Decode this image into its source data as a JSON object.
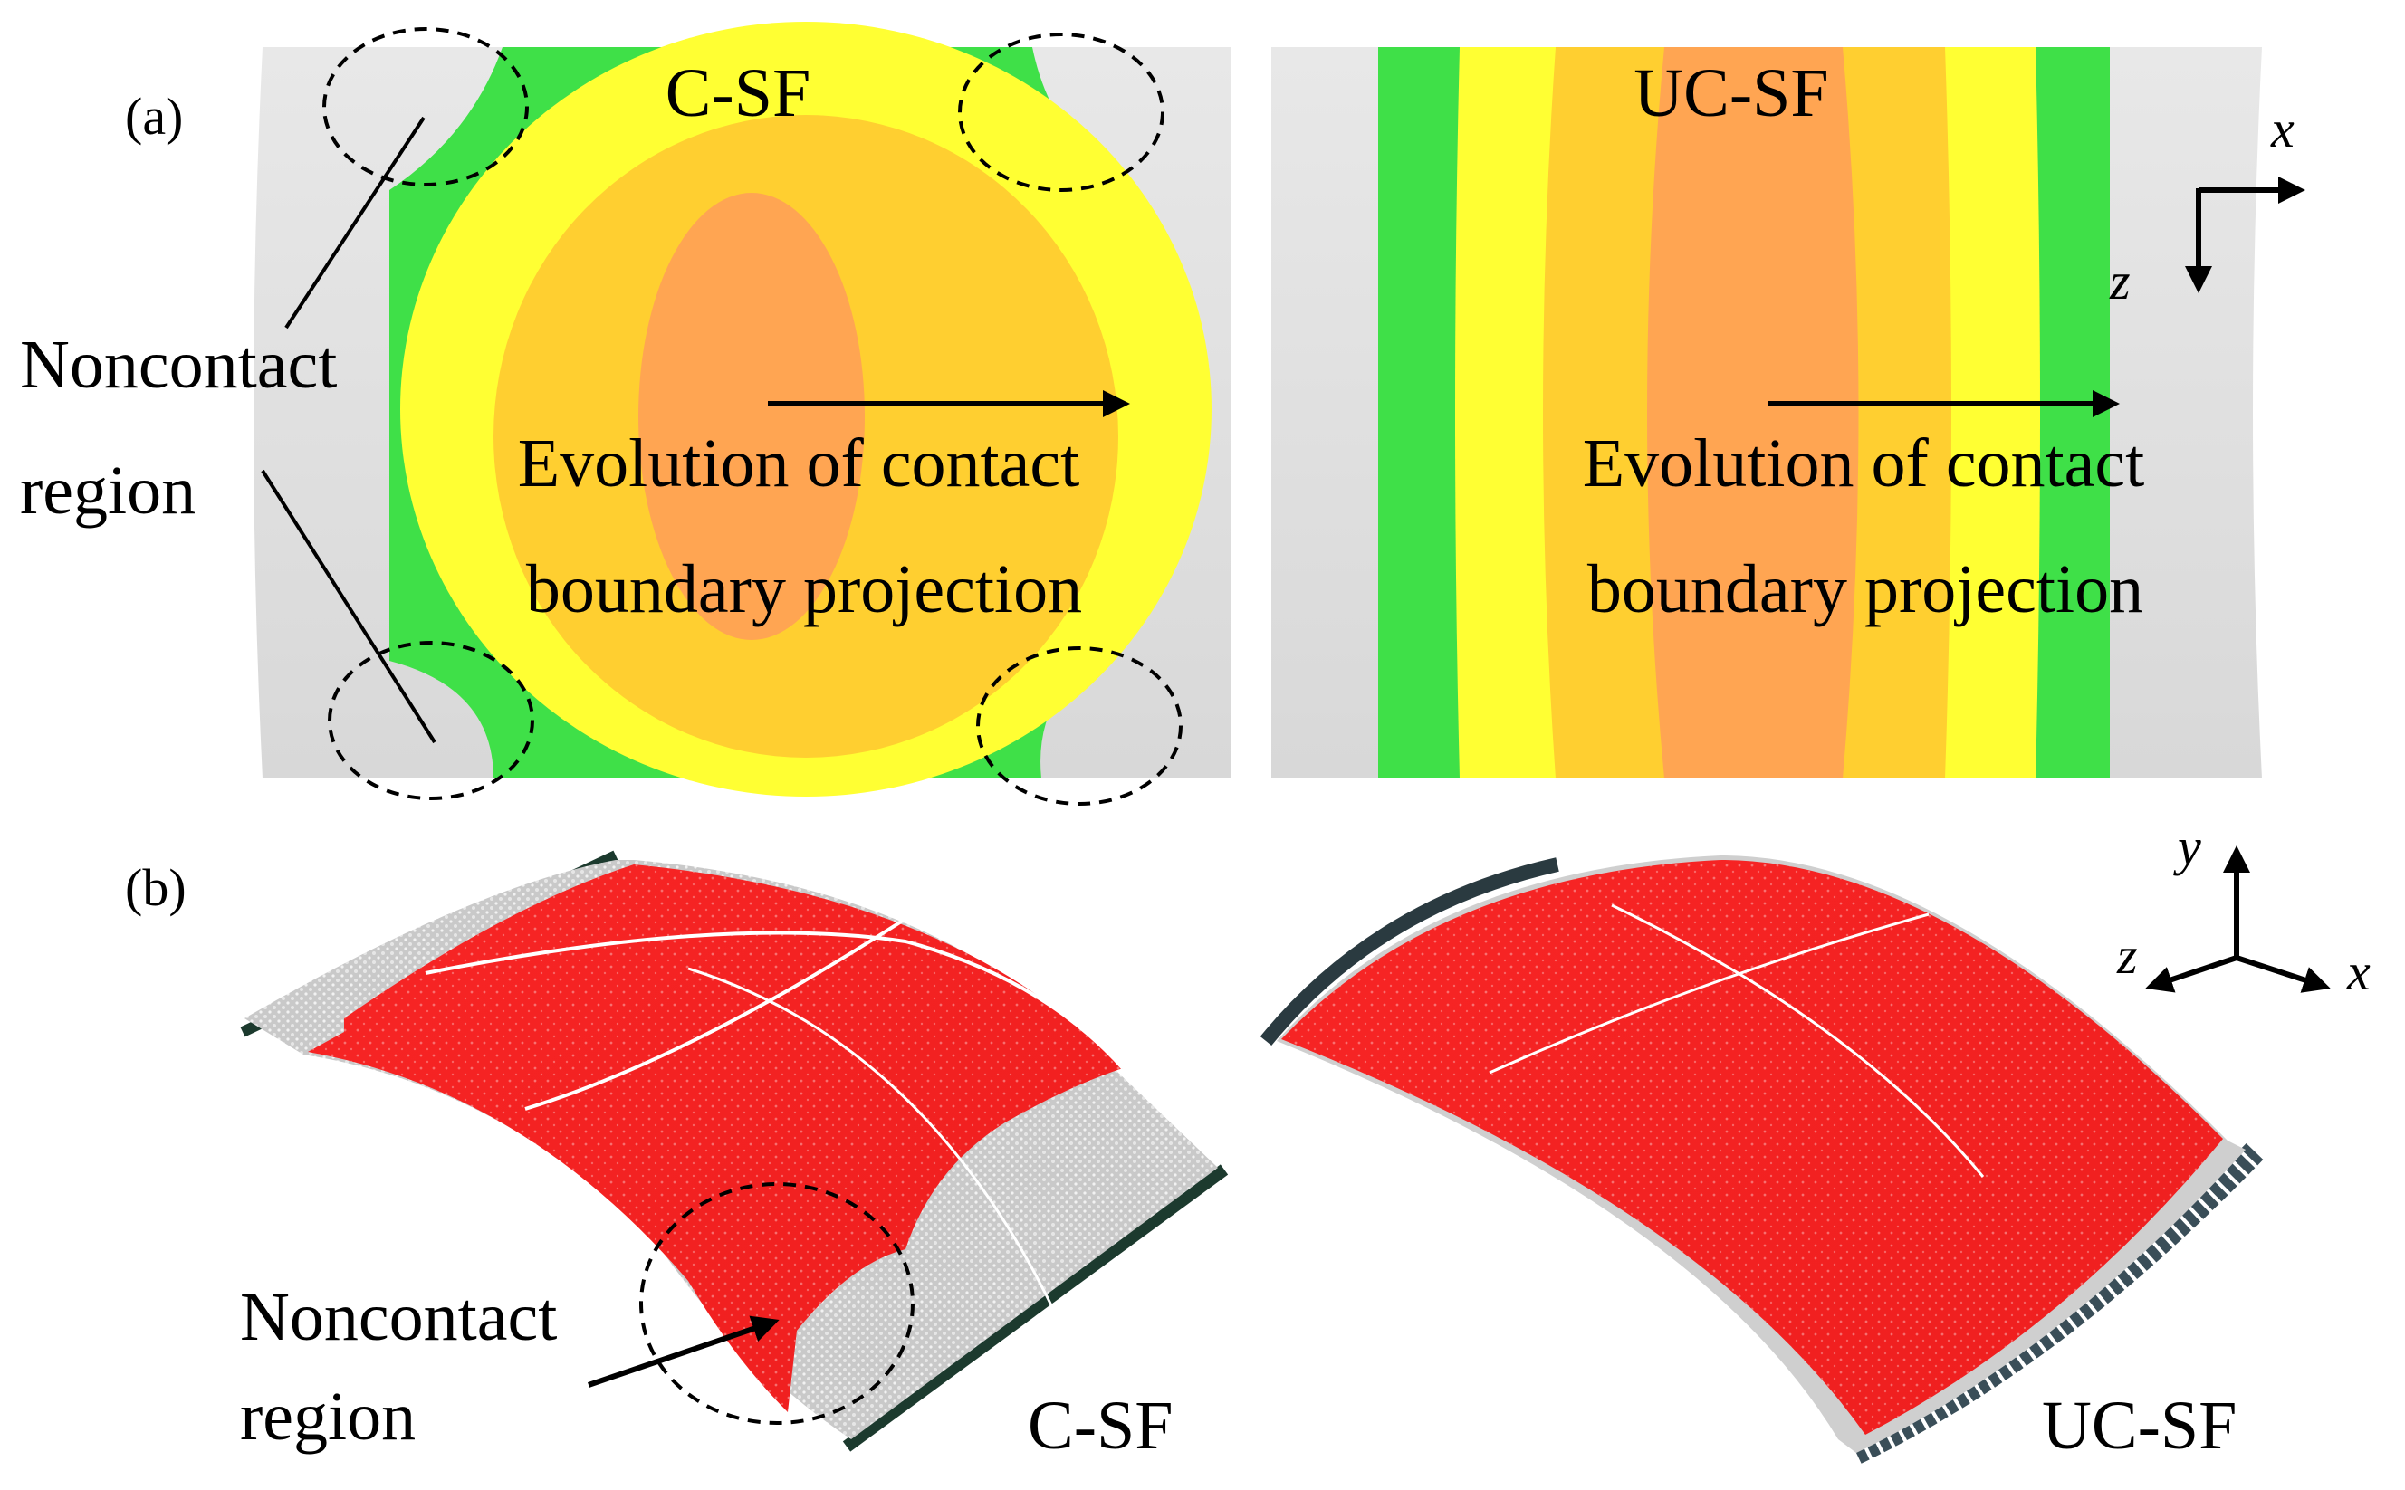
{
  "panel_a": {
    "label": "(a)",
    "left_title": "C-SF",
    "right_title": "UC-SF",
    "noncontact_line1": "Noncontact",
    "noncontact_line2": "region",
    "evolution_line1": "Evolution of contact",
    "evolution_line2": "boundary projection",
    "axes": {
      "x": "x",
      "z": "z"
    }
  },
  "panel_b": {
    "label": "(b)",
    "left_caption": "C-SF",
    "right_caption": "UC-SF",
    "noncontact_line1": "Noncontact",
    "noncontact_line2": "region",
    "axes": {
      "x": "x",
      "y": "y",
      "z": "z"
    }
  },
  "colors": {
    "noncontact_gray": "#e3e3e3",
    "green": "#3fe048",
    "yellow": "#ffff33",
    "gold": "#ffcf30",
    "orange": "#ffa552",
    "contact_red": "#f42222",
    "rail": "#1c3a2e"
  }
}
